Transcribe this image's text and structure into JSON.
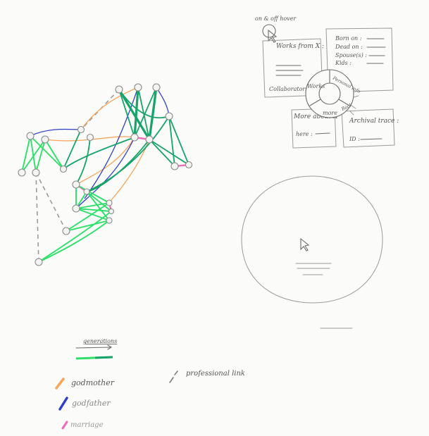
{
  "colors": {
    "parent_dark": "#17a36a",
    "parent_light": "#2ee06a",
    "godmother": "#f5a55b",
    "godfather": "#2f3fc9",
    "marriage": "#f06bb8",
    "professional": "#9a9a9a",
    "pencil": "#9a9a9a",
    "paper": "#fbfbf9"
  },
  "card": {
    "top_label": "on & off hover",
    "works_label": "Works from X :",
    "collaborators_label": "Collaborators",
    "born_on": "Born on :",
    "died_on": "Dead on :",
    "spouses": "Spouse(s) :",
    "kids": "Kids :",
    "more_about": "More about X",
    "here": "here :",
    "archival": "Archival trace :",
    "id": "ID :",
    "wheel": {
      "works": "Works",
      "personal_info": "Personal info",
      "more": "more",
      "back": "Back"
    }
  },
  "legend": {
    "generations": "generations",
    "godmother": "godmother",
    "godfather": "godfather",
    "marriage": "marriage",
    "professional_link": "professional link"
  }
}
